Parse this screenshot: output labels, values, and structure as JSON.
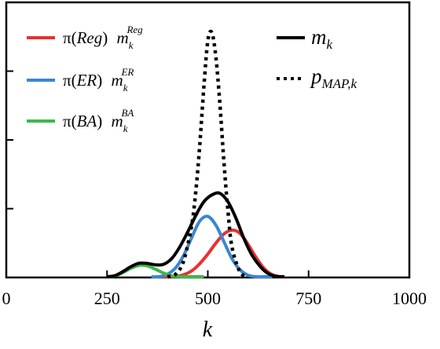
{
  "chart_data": {
    "type": "line",
    "xlabel": "k",
    "ylabel": "",
    "title": "",
    "xlim": [
      0,
      1000
    ],
    "ylim": [
      0,
      1.0
    ],
    "xticks": [
      {
        "value": 0,
        "label": "0"
      },
      {
        "value": 250,
        "label": "250"
      },
      {
        "value": 500,
        "label": "500"
      },
      {
        "value": 750,
        "label": "750"
      },
      {
        "value": 1000,
        "label": "1000"
      }
    ],
    "yticks": [
      0.25,
      0.5,
      0.75
    ],
    "grid": false,
    "legend": [
      {
        "series": "reg",
        "pi_text": "π(",
        "group": "Reg",
        "close": ")",
        "m": "m",
        "sub": "k",
        "sup": "Reg",
        "color": "#e8312f",
        "style": "solid"
      },
      {
        "series": "er",
        "pi_text": "π(",
        "group": "ER",
        "close": ")",
        "m": "m",
        "sub": "k",
        "sup": "ER",
        "color": "#3b86d0",
        "style": "solid"
      },
      {
        "series": "ba",
        "pi_text": "π(",
        "group": "BA",
        "close": ")",
        "m": "m",
        "sub": "k",
        "sup": "BA",
        "color": "#3cb84a",
        "style": "solid"
      },
      {
        "series": "mk",
        "m": "m",
        "sub": "k",
        "color": "#000000",
        "style": "solid"
      },
      {
        "series": "pmap",
        "m": "p",
        "sub": "MAP,k",
        "color": "#000000",
        "style": "dotted"
      }
    ],
    "series": [
      {
        "key": "reg",
        "color": "#e8312f",
        "x": [
          380,
          400,
          420,
          440,
          460,
          480,
          500,
          520,
          540,
          560,
          580,
          600,
          620,
          640,
          660,
          680
        ],
        "y": [
          0.0,
          0.001,
          0.004,
          0.01,
          0.024,
          0.05,
          0.085,
          0.125,
          0.158,
          0.172,
          0.16,
          0.12,
          0.072,
          0.032,
          0.01,
          0.002
        ]
      },
      {
        "key": "er",
        "color": "#3b86d0",
        "x": [
          360,
          380,
          400,
          420,
          440,
          460,
          480,
          500,
          520,
          540,
          560,
          580,
          600,
          620,
          640,
          660
        ],
        "y": [
          0.0,
          0.003,
          0.012,
          0.035,
          0.08,
          0.145,
          0.205,
          0.222,
          0.19,
          0.13,
          0.068,
          0.028,
          0.008,
          0.002,
          0.0,
          0.0
        ]
      },
      {
        "key": "ba",
        "color": "#3cb84a",
        "x": [
          250,
          270,
          290,
          310,
          330,
          350,
          370,
          390,
          410,
          430,
          450,
          470,
          490
        ],
        "y": [
          0.0,
          0.006,
          0.018,
          0.034,
          0.044,
          0.042,
          0.03,
          0.016,
          0.006,
          0.002,
          0.0,
          0.0,
          0.0
        ]
      },
      {
        "key": "mk",
        "color": "#000000",
        "x": [
          250,
          270,
          290,
          310,
          330,
          350,
          370,
          390,
          410,
          430,
          450,
          470,
          490,
          510,
          530,
          550,
          570,
          590,
          610,
          630,
          650,
          670,
          690
        ],
        "y": [
          0.0,
          0.007,
          0.022,
          0.04,
          0.052,
          0.051,
          0.046,
          0.048,
          0.068,
          0.11,
          0.165,
          0.225,
          0.275,
          0.3,
          0.306,
          0.275,
          0.215,
          0.14,
          0.08,
          0.04,
          0.014,
          0.004,
          0.0
        ]
      },
      {
        "key": "pmap",
        "color": "#000000",
        "dashed": true,
        "x": [
          400,
          420,
          440,
          460,
          470,
          480,
          490,
          500,
          510,
          520,
          530,
          540,
          550,
          560,
          580,
          600
        ],
        "y": [
          0.0,
          0.012,
          0.06,
          0.19,
          0.31,
          0.48,
          0.69,
          0.86,
          0.89,
          0.8,
          0.63,
          0.42,
          0.24,
          0.11,
          0.02,
          0.0
        ]
      }
    ]
  }
}
